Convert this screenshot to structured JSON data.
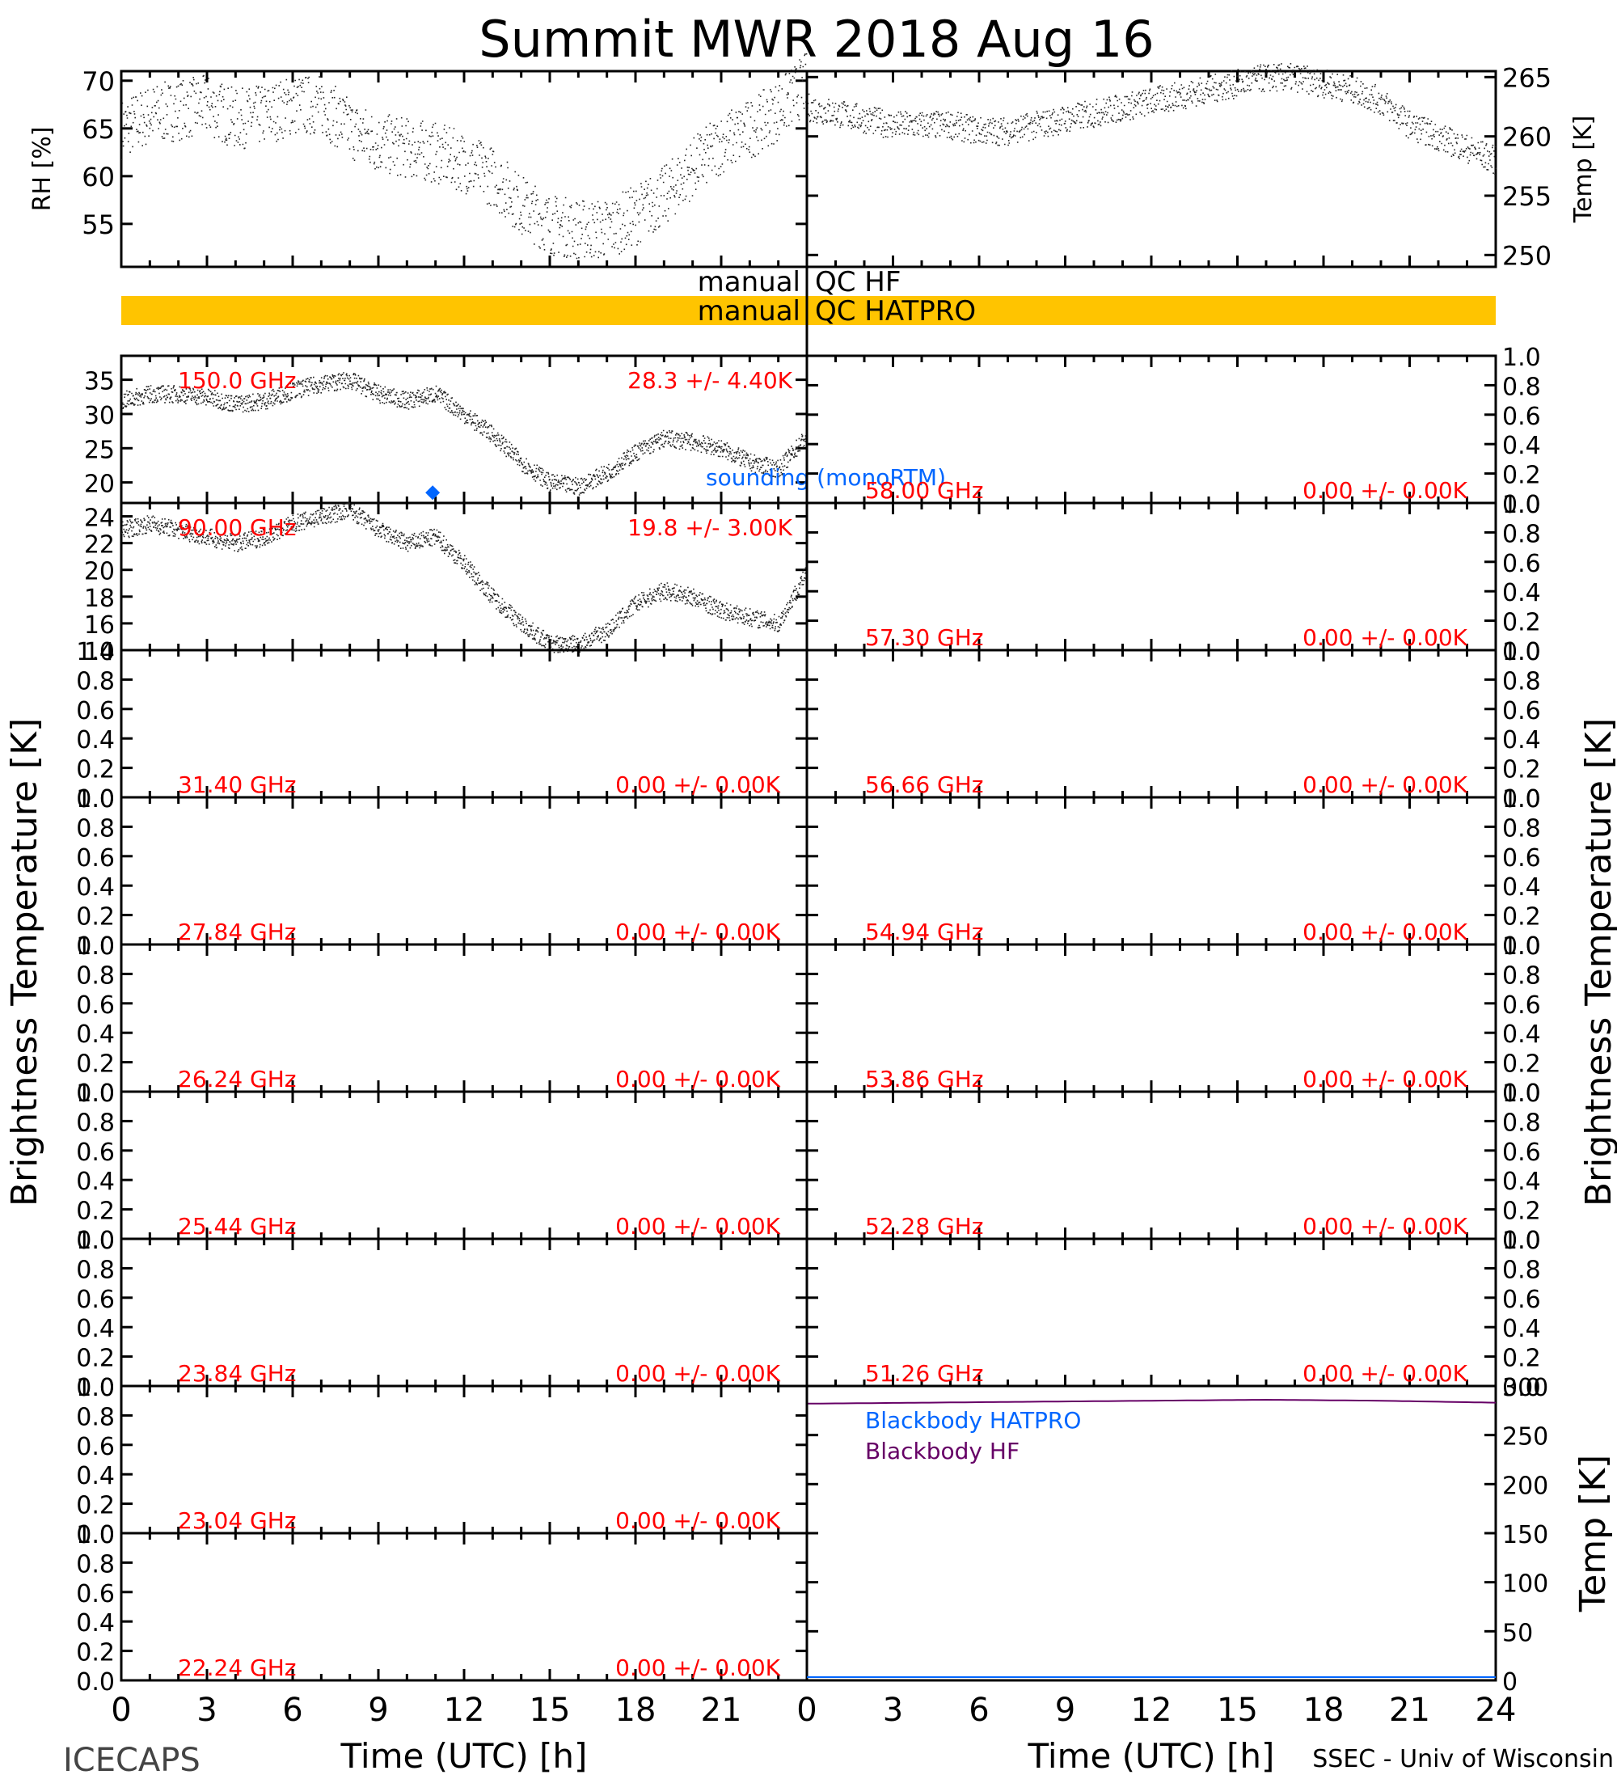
{
  "title": "Summit MWR 2018 Aug 16",
  "footer": {
    "left": "ICECAPS",
    "right": "SSEC - Univ of Wisconsin"
  },
  "colors": {
    "axis": "#000000",
    "channel_label": "#ff0000",
    "qc_bar": "#ffc400",
    "sounding": "#0066ff",
    "bb_hatpro": "#0066ff",
    "bb_hf": "#660066"
  },
  "x_axis": {
    "label": "Time (UTC) [h]",
    "range": [
      0,
      24
    ],
    "ticks": [
      "0",
      "3",
      "6",
      "9",
      "12",
      "15",
      "18",
      "21"
    ],
    "right_ticks": [
      "0",
      "3",
      "6",
      "9",
      "12",
      "15",
      "18",
      "21",
      "24"
    ]
  },
  "met_panel": {
    "left": {
      "label": "RH [%]",
      "ticks": [
        "55",
        "60",
        "65",
        "70"
      ],
      "range": [
        50.5,
        71
      ]
    },
    "right": {
      "label": "Temp [K]",
      "ticks": [
        "250",
        "255",
        "260",
        "265"
      ],
      "range": [
        249,
        265.5
      ]
    }
  },
  "qc": [
    {
      "label": "manual QC HF",
      "flagged": false
    },
    {
      "label": "manual QC HATPRO",
      "flagged": true
    }
  ],
  "tb_axis_label": "Brightness Temperature [K]",
  "bb_panel": {
    "axis_label": "Temp [K]",
    "ticks": [
      "0",
      "50",
      "100",
      "150",
      "200",
      "250",
      "300"
    ],
    "range": [
      0,
      300
    ],
    "legend": [
      "Blackbody HATPRO",
      "Blackbody HF"
    ]
  },
  "channels_left": [
    {
      "freq": "150.0 GHz",
      "stats": "28.3 +/-  4.40K",
      "ticks": [
        "20",
        "25",
        "30",
        "35"
      ],
      "range": [
        17,
        38.5
      ],
      "has_data": true,
      "sounding_label": "sounding (monoRTM)",
      "sounding_point": [
        10.9,
        18.5
      ]
    },
    {
      "freq": "90.00 GHz",
      "stats": "19.8 +/-  3.00K",
      "ticks": [
        "14",
        "16",
        "18",
        "20",
        "22",
        "24"
      ],
      "range": [
        14,
        25
      ],
      "has_data": true
    },
    {
      "freq": "31.40 GHz",
      "stats": "0.00 +/-  0.00K",
      "ticks": [
        "0.0",
        "0.2",
        "0.4",
        "0.6",
        "0.8",
        "1.0"
      ],
      "range": [
        0,
        1
      ],
      "has_data": false
    },
    {
      "freq": "27.84 GHz",
      "stats": "0.00 +/-  0.00K",
      "ticks": [
        "0.0",
        "0.2",
        "0.4",
        "0.6",
        "0.8",
        "1.0"
      ],
      "range": [
        0,
        1
      ],
      "has_data": false
    },
    {
      "freq": "26.24 GHz",
      "stats": "0.00 +/-  0.00K",
      "ticks": [
        "0.0",
        "0.2",
        "0.4",
        "0.6",
        "0.8",
        "1.0"
      ],
      "range": [
        0,
        1
      ],
      "has_data": false
    },
    {
      "freq": "25.44 GHz",
      "stats": "0.00 +/-  0.00K",
      "ticks": [
        "0.0",
        "0.2",
        "0.4",
        "0.6",
        "0.8",
        "1.0"
      ],
      "range": [
        0,
        1
      ],
      "has_data": false
    },
    {
      "freq": "23.84 GHz",
      "stats": "0.00 +/-  0.00K",
      "ticks": [
        "0.0",
        "0.2",
        "0.4",
        "0.6",
        "0.8",
        "1.0"
      ],
      "range": [
        0,
        1
      ],
      "has_data": false
    },
    {
      "freq": "23.04 GHz",
      "stats": "0.00 +/-  0.00K",
      "ticks": [
        "0.0",
        "0.2",
        "0.4",
        "0.6",
        "0.8",
        "1.0"
      ],
      "range": [
        0,
        1
      ],
      "has_data": false
    },
    {
      "freq": "22.24 GHz",
      "stats": "0.00 +/-  0.00K",
      "ticks": [
        "0.0",
        "0.2",
        "0.4",
        "0.6",
        "0.8",
        "1.0"
      ],
      "range": [
        0,
        1
      ],
      "has_data": false
    }
  ],
  "channels_right": [
    {
      "freq": "58.00 GHz",
      "stats": "0.00 +/-  0.00K"
    },
    {
      "freq": "57.30 GHz",
      "stats": "0.00 +/-  0.00K"
    },
    {
      "freq": "56.66 GHz",
      "stats": "0.00 +/-  0.00K"
    },
    {
      "freq": "54.94 GHz",
      "stats": "0.00 +/-  0.00K"
    },
    {
      "freq": "53.86 GHz",
      "stats": "0.00 +/-  0.00K"
    },
    {
      "freq": "52.28 GHz",
      "stats": "0.00 +/-  0.00K"
    },
    {
      "freq": "51.26 GHz",
      "stats": "0.00 +/-  0.00K"
    }
  ],
  "chart_data": [
    {
      "type": "scatter",
      "name": "RH",
      "x": [
        0,
        1,
        2,
        3,
        4,
        5,
        6,
        7,
        8,
        9,
        10,
        11,
        12,
        13,
        14,
        15,
        16,
        17,
        18,
        19,
        20,
        21,
        22,
        23,
        24
      ],
      "y": [
        65,
        66.5,
        67,
        67.5,
        66,
        66.5,
        67.5,
        67.5,
        65,
        63.5,
        63,
        62.5,
        61.5,
        60,
        57,
        55,
        54.5,
        54.5,
        56,
        58,
        61,
        63.5,
        65,
        67,
        70
      ]
    },
    {
      "type": "scatter",
      "name": "Temp",
      "x": [
        0,
        1,
        2,
        3,
        4,
        5,
        6,
        7,
        8,
        9,
        10,
        11,
        12,
        13,
        14,
        15,
        16,
        17,
        18,
        19,
        20,
        21,
        22,
        23,
        24
      ],
      "y": [
        262.5,
        262,
        261.5,
        261,
        261,
        261,
        260.5,
        260.5,
        261,
        261.5,
        262,
        262.5,
        263,
        263.5,
        264,
        264.5,
        265,
        265,
        264.5,
        264,
        263,
        261,
        260,
        259,
        258
      ]
    },
    {
      "type": "scatter",
      "name": "Tb 150.0 GHz",
      "x": [
        0,
        1,
        2,
        3,
        4,
        5,
        6,
        7,
        8,
        9,
        10,
        11,
        12,
        13,
        14,
        15,
        16,
        17,
        18,
        19,
        20,
        21,
        22,
        23,
        24
      ],
      "y": [
        32,
        33,
        33,
        32.5,
        31.5,
        32,
        33.5,
        34.5,
        35,
        33,
        32,
        33,
        30,
        27,
        23,
        20,
        19.5,
        21.5,
        24.5,
        26.5,
        26,
        25,
        23,
        22,
        27
      ]
    },
    {
      "type": "scatter",
      "name": "Tb 90.00 GHz",
      "x": [
        0,
        1,
        2,
        3,
        4,
        5,
        6,
        7,
        8,
        9,
        10,
        11,
        12,
        13,
        14,
        15,
        16,
        17,
        18,
        19,
        20,
        21,
        22,
        23,
        24
      ],
      "y": [
        23,
        23.5,
        23,
        22.5,
        22,
        22.5,
        23.5,
        24,
        24.5,
        23,
        22,
        22.5,
        20.5,
        18,
        16,
        14.5,
        14.5,
        15.5,
        17.5,
        18.5,
        18,
        17,
        16.5,
        16,
        20
      ]
    },
    {
      "type": "line",
      "name": "Blackbody HF",
      "x": [
        0,
        4,
        8,
        12,
        16,
        20,
        24
      ],
      "y": [
        282,
        283,
        284,
        285,
        286,
        285,
        283
      ]
    }
  ]
}
